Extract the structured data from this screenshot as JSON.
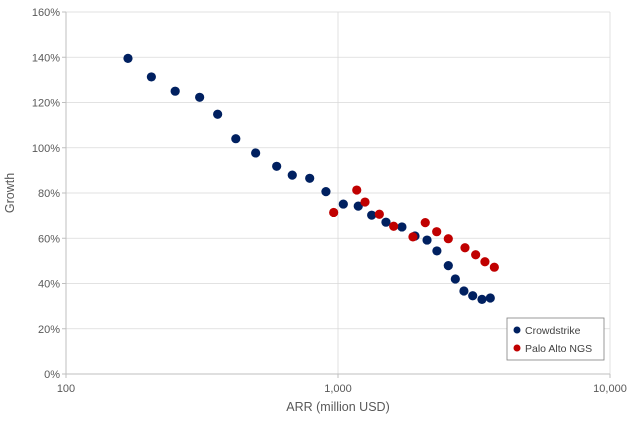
{
  "chart_data": {
    "type": "scatter",
    "title": "",
    "xlabel": "ARR (million USD)",
    "ylabel": "Growth",
    "xscale": "log",
    "xlim": [
      100,
      10000
    ],
    "ylim": [
      0,
      160
    ],
    "x_ticks": [
      100,
      1000,
      10000
    ],
    "x_tick_labels": [
      "100",
      "1,000",
      "10,000"
    ],
    "y_ticks": [
      0,
      20,
      40,
      60,
      80,
      100,
      120,
      140,
      160
    ],
    "y_tick_labels": [
      "0%",
      "20%",
      "40%",
      "60%",
      "80%",
      "100%",
      "120%",
      "140%",
      "160%"
    ],
    "grid": true,
    "legend_position": "bottom-right",
    "series": [
      {
        "name": "Crowdstrike",
        "color": "#002060",
        "x": [
          169,
          206,
          252,
          310,
          361,
          421,
          498,
          595,
          679,
          787,
          903,
          1046,
          1187,
          1330,
          1501,
          1718,
          1919,
          2125,
          2310,
          2544,
          2700,
          2904,
          3128,
          3383,
          3630
        ],
        "y": [
          139.5,
          131.3,
          125.0,
          122.3,
          114.8,
          104.0,
          97.7,
          91.8,
          87.9,
          86.5,
          80.6,
          75.1,
          74.2,
          70.2,
          67.1,
          65.0,
          61.0,
          59.2,
          54.4,
          47.9,
          42.0,
          36.7,
          34.6,
          33.0,
          33.6
        ]
      },
      {
        "name": "Palo Alto NGS",
        "color": "#C00000",
        "x": [
          964,
          1172,
          1257,
          1419,
          1602,
          1886,
          2093,
          2306,
          2544,
          2930,
          3207,
          3469,
          3756
        ],
        "y": [
          71.4,
          81.3,
          76.0,
          70.6,
          65.3,
          60.6,
          66.9,
          62.9,
          59.8,
          55.8,
          52.7,
          49.6,
          47.2
        ]
      }
    ]
  }
}
